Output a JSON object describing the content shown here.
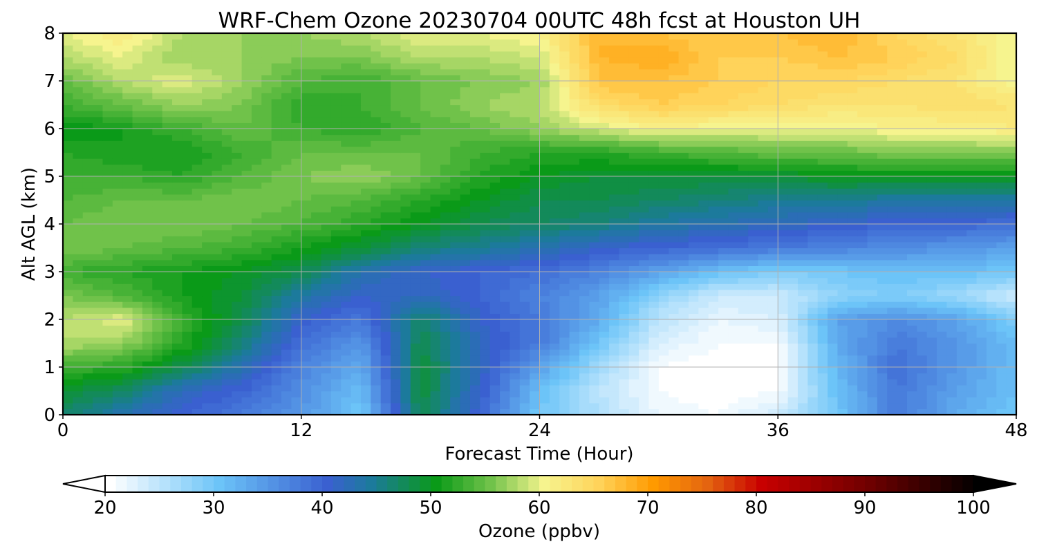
{
  "chart_data": {
    "type": "heatmap",
    "title": "WRF-Chem Ozone  20230704 00UTC 48h fcst at Houston UH",
    "xlabel": "Forecast Time (Hour)",
    "ylabel": "Alt AGL (km)",
    "xlim": [
      0,
      48
    ],
    "ylim": [
      0,
      8
    ],
    "x_ticks": [
      0,
      12,
      24,
      36,
      48
    ],
    "y_ticks": [
      0,
      1,
      2,
      3,
      4,
      5,
      6,
      7,
      8
    ],
    "grid": true,
    "x": [
      0,
      3,
      6,
      9,
      12,
      15,
      18,
      21,
      24,
      27,
      30,
      33,
      36,
      39,
      42,
      45,
      48
    ],
    "y": [
      0,
      0.5,
      1,
      1.5,
      2,
      2.5,
      3,
      3.5,
      4,
      4.5,
      5,
      5.5,
      6,
      6.5,
      7,
      7.5,
      8
    ],
    "values": [
      [
        47,
        43,
        40,
        38,
        35,
        30,
        48,
        40,
        30,
        26,
        22,
        21,
        24,
        30,
        38,
        33,
        30
      ],
      [
        49,
        47,
        42,
        40,
        36,
        31,
        49,
        41,
        31,
        25,
        21,
        20,
        21,
        31,
        38,
        34,
        31
      ],
      [
        53,
        52,
        48,
        43,
        37,
        33,
        49,
        42,
        34,
        27,
        21,
        20,
        21,
        32,
        39,
        35,
        31
      ],
      [
        58,
        57,
        52,
        46,
        39,
        35,
        48,
        42,
        38,
        30,
        23,
        21,
        21,
        33,
        38,
        35,
        31
      ],
      [
        58,
        60,
        53,
        48,
        41,
        38,
        47,
        41,
        38,
        33,
        25,
        22,
        23,
        34,
        36,
        34,
        29
      ],
      [
        56,
        54,
        51,
        49,
        44,
        41,
        42,
        40,
        37,
        34,
        28,
        24,
        24,
        28,
        29,
        27,
        24
      ],
      [
        53,
        52,
        51,
        50,
        48,
        43,
        41,
        40,
        39,
        37,
        34,
        31,
        29,
        30,
        31,
        31,
        30
      ],
      [
        56,
        55,
        54,
        53,
        51,
        49,
        46,
        45,
        43,
        41,
        40,
        39,
        38,
        37,
        36,
        35,
        34
      ],
      [
        55,
        56,
        56,
        55,
        54,
        52,
        50,
        48,
        47,
        46,
        44,
        43,
        42,
        41,
        40,
        40,
        39
      ],
      [
        54,
        55,
        55,
        56,
        55,
        54,
        52,
        50,
        48,
        48,
        47,
        46,
        45,
        45,
        44,
        44,
        44
      ],
      [
        53,
        53,
        52,
        54,
        56,
        57,
        55,
        52,
        50,
        49,
        49,
        49,
        49,
        50,
        50,
        50,
        50
      ],
      [
        52,
        51,
        51,
        53,
        55,
        55,
        55,
        53,
        52,
        52,
        53,
        54,
        55,
        55,
        56,
        56,
        56
      ],
      [
        50,
        51,
        53,
        55,
        53,
        52,
        54,
        55,
        57,
        59,
        61,
        60,
        60,
        60,
        61,
        61,
        62
      ],
      [
        53,
        55,
        57,
        56,
        52,
        53,
        55,
        57,
        58,
        64,
        66,
        65,
        64,
        63,
        63,
        64,
        63
      ],
      [
        55,
        58,
        60,
        57,
        54,
        53,
        55,
        56,
        57,
        67,
        67,
        66,
        65,
        65,
        64,
        63,
        60
      ],
      [
        58,
        60,
        57,
        57,
        56,
        56,
        58,
        58,
        59,
        68,
        69,
        66,
        66,
        67,
        66,
        64,
        60
      ],
      [
        60,
        62,
        58,
        57,
        57,
        58,
        60,
        60,
        61,
        68,
        67,
        66,
        67,
        68,
        65,
        63,
        60
      ]
    ],
    "colorbar": {
      "label": "Ozone  (ppbv)",
      "min": 20,
      "max": 100,
      "ticks": [
        20,
        30,
        40,
        50,
        60,
        70,
        80,
        90,
        100
      ],
      "extend": "both",
      "orientation": "horizontal",
      "color_stops": [
        [
          20,
          "#ffffff"
        ],
        [
          30,
          "#6cc4f8"
        ],
        [
          40,
          "#3a60d0"
        ],
        [
          44,
          "#1c7a9c"
        ],
        [
          50,
          "#0a9a18"
        ],
        [
          55,
          "#70c24a"
        ],
        [
          60,
          "#f6f48e"
        ],
        [
          65,
          "#ffd35a"
        ],
        [
          70,
          "#ff9a00"
        ],
        [
          75,
          "#e46410"
        ],
        [
          80,
          "#c80000"
        ],
        [
          90,
          "#6e0000"
        ],
        [
          100,
          "#000000"
        ]
      ]
    }
  }
}
